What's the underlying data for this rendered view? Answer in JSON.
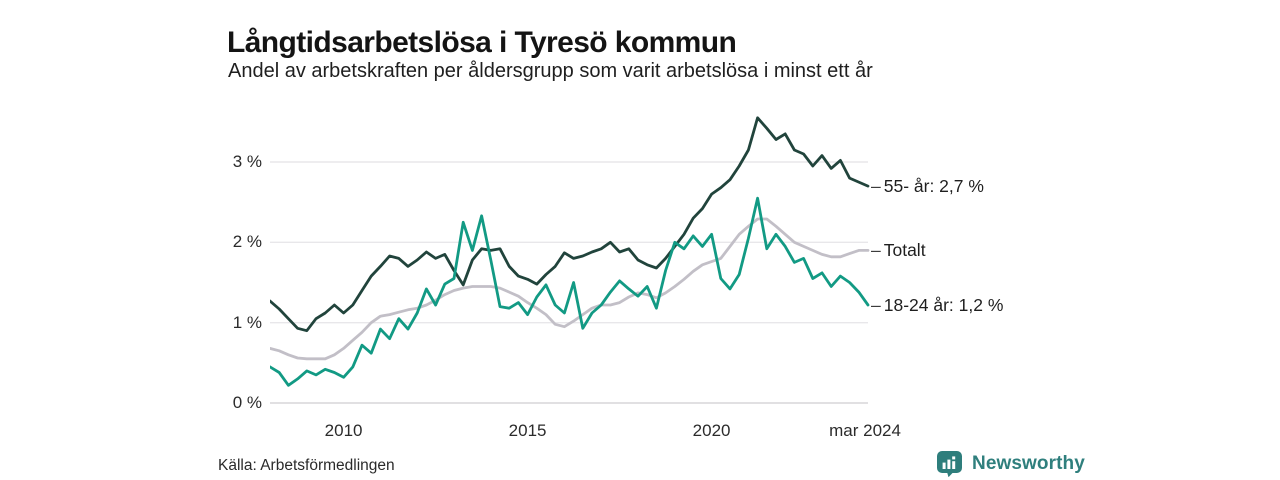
{
  "title": "Långtidsarbetslösa i Tyresö kommun",
  "subtitle": "Andel av arbetskraften per åldersgrupp som varit arbetslösa i minst ett år",
  "source": "Källa: Arbetsförmedlingen",
  "logo": {
    "text": "Newsworthy",
    "color": "#2f7f7d"
  },
  "colors": {
    "grid": "#e8e7ea",
    "grid_zero": "#d7d6d9",
    "series_55": "#21443c",
    "series_total": "#c2bfc7",
    "series_1824": "#129a84",
    "text": "#1f1f1f"
  },
  "chart_data": {
    "type": "line",
    "title": "Långtidsarbetslösa i Tyresö kommun",
    "subtitle": "Andel av arbetskraften per åldersgrupp som varit arbetslösa i minst ett år",
    "xlabel": "",
    "ylabel": "",
    "grid": true,
    "legend_position": "right-of-line-ends",
    "xlim": [
      2008.0,
      2024.25
    ],
    "ylim": [
      0,
      3.6
    ],
    "x_start": 2008.0,
    "x_step_years": 0.25,
    "x_ticks": [
      {
        "label": "2010",
        "value": 2010
      },
      {
        "label": "2015",
        "value": 2015
      },
      {
        "label": "2020",
        "value": 2020
      },
      {
        "label": "mar 2024",
        "value": 2024.17
      }
    ],
    "y_ticks": [
      {
        "label": "3 %",
        "value": 3
      },
      {
        "label": "2 %",
        "value": 2
      },
      {
        "label": "1 %",
        "value": 1
      },
      {
        "label": "0 %",
        "value": 0
      }
    ],
    "series": [
      {
        "name": "Totalt",
        "color": "#c2bfc7",
        "end_label": "Totalt",
        "end_value": 1.9,
        "values": [
          0.68,
          0.65,
          0.6,
          0.56,
          0.55,
          0.55,
          0.55,
          0.6,
          0.68,
          0.78,
          0.88,
          1.0,
          1.08,
          1.1,
          1.13,
          1.16,
          1.18,
          1.22,
          1.28,
          1.35,
          1.4,
          1.43,
          1.45,
          1.45,
          1.45,
          1.43,
          1.38,
          1.33,
          1.25,
          1.18,
          1.1,
          0.98,
          0.95,
          1.02,
          1.1,
          1.18,
          1.22,
          1.22,
          1.25,
          1.32,
          1.37,
          1.35,
          1.31,
          1.37,
          1.45,
          1.54,
          1.64,
          1.72,
          1.76,
          1.8,
          1.95,
          2.1,
          2.2,
          2.29,
          2.29,
          2.2,
          2.1,
          2.0,
          1.95,
          1.9,
          1.85,
          1.82,
          1.82,
          1.86,
          1.9,
          1.9
        ]
      },
      {
        "name": "55- år",
        "color": "#21443c",
        "end_label": "55- år: 2,7 %",
        "end_value": 2.7,
        "values": [
          1.27,
          1.17,
          1.05,
          0.93,
          0.9,
          1.05,
          1.12,
          1.22,
          1.12,
          1.22,
          1.4,
          1.58,
          1.7,
          1.83,
          1.8,
          1.7,
          1.78,
          1.88,
          1.8,
          1.85,
          1.65,
          1.47,
          1.78,
          1.92,
          1.9,
          1.92,
          1.7,
          1.58,
          1.54,
          1.48,
          1.6,
          1.7,
          1.87,
          1.8,
          1.83,
          1.88,
          1.92,
          2.0,
          1.88,
          1.92,
          1.78,
          1.72,
          1.68,
          1.8,
          1.95,
          2.1,
          2.3,
          2.42,
          2.6,
          2.68,
          2.78,
          2.95,
          3.15,
          3.55,
          3.42,
          3.28,
          3.35,
          3.15,
          3.1,
          2.95,
          3.08,
          2.92,
          3.02,
          2.8,
          2.75,
          2.7
        ]
      },
      {
        "name": "18-24 år",
        "color": "#129a84",
        "end_label": "18-24 år: 1,2 %",
        "end_value": 1.22,
        "values": [
          0.45,
          0.38,
          0.22,
          0.3,
          0.4,
          0.35,
          0.42,
          0.38,
          0.32,
          0.45,
          0.72,
          0.62,
          0.92,
          0.8,
          1.05,
          0.92,
          1.12,
          1.42,
          1.22,
          1.48,
          1.55,
          2.25,
          1.9,
          2.33,
          1.78,
          1.2,
          1.18,
          1.25,
          1.1,
          1.32,
          1.47,
          1.22,
          1.12,
          1.5,
          0.93,
          1.12,
          1.22,
          1.38,
          1.52,
          1.42,
          1.33,
          1.45,
          1.18,
          1.65,
          2.0,
          1.92,
          2.08,
          1.95,
          2.1,
          1.55,
          1.42,
          1.6,
          2.05,
          2.55,
          1.92,
          2.1,
          1.95,
          1.75,
          1.8,
          1.55,
          1.62,
          1.45,
          1.58,
          1.5,
          1.38,
          1.22
        ]
      }
    ]
  }
}
